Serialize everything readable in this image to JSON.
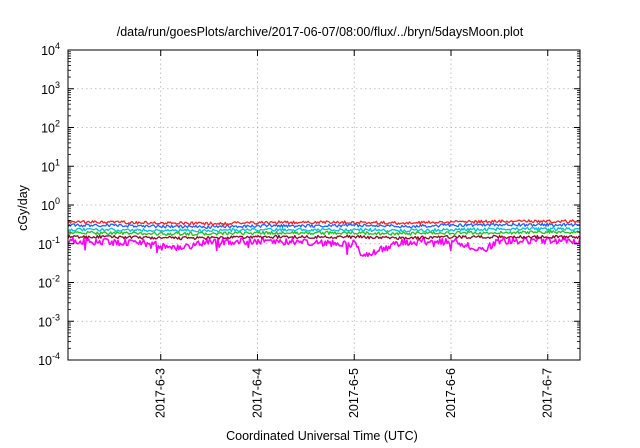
{
  "chart_data": {
    "type": "line",
    "title": "/data/run/goesPlots/archive/2017-06-07/08:00/flux/../bryn/5daysMoon.plot",
    "xlabel": "Coordinated Universal Time (UTC)",
    "ylabel": "cGy/day",
    "yscale": "log",
    "ylim": [
      0.0001,
      10000
    ],
    "y_ticks": [
      {
        "value": 0.0001,
        "base": "10",
        "exp": "-4"
      },
      {
        "value": 0.001,
        "base": "10",
        "exp": "-3"
      },
      {
        "value": 0.01,
        "base": "10",
        "exp": "-2"
      },
      {
        "value": 0.1,
        "base": "10",
        "exp": "-1"
      },
      {
        "value": 1,
        "base": "10",
        "exp": "0"
      },
      {
        "value": 10,
        "base": "10",
        "exp": "1"
      },
      {
        "value": 100,
        "base": "10",
        "exp": "2"
      },
      {
        "value": 1000,
        "base": "10",
        "exp": "3"
      },
      {
        "value": 10000,
        "base": "10",
        "exp": "4"
      }
    ],
    "xlim": [
      "2017-06-02 01:00",
      "2017-06-07 08:00"
    ],
    "x_ticks": [
      "2017-6-3",
      "2017-6-4",
      "2017-6-5",
      "2017-6-6",
      "2017-6-7"
    ],
    "x_tick_dates": [
      "2017-06-03",
      "2017-06-04",
      "2017-06-05",
      "2017-06-06",
      "2017-06-07"
    ],
    "grid": true,
    "legend": "none",
    "series_colors": [
      "#ff00ff",
      "#8b0a2a",
      "#20c020",
      "#00c0e0",
      "#2060ff",
      "#ff2020"
    ],
    "series": [
      {
        "color": "#ff00ff",
        "dates": [
          "2017-06-02 01:00",
          "2017-06-02 12:00",
          "2017-06-03 00:00",
          "2017-06-03 02:00",
          "2017-06-03 12:00",
          "2017-06-04 00:00",
          "2017-06-04 12:00",
          "2017-06-05 00:00",
          "2017-06-05 02:00",
          "2017-06-05 12:00",
          "2017-06-06 00:00",
          "2017-06-06 08:00",
          "2017-06-06 12:00",
          "2017-06-07 00:00",
          "2017-06-07 08:00"
        ],
        "values": [
          0.12,
          0.11,
          0.1,
          0.07,
          0.11,
          0.12,
          0.11,
          0.1,
          0.05,
          0.11,
          0.12,
          0.07,
          0.12,
          0.12,
          0.12
        ]
      },
      {
        "color": "#8b0a2a",
        "dates": [
          "2017-06-02 01:00",
          "2017-06-02 12:00",
          "2017-06-03 00:00",
          "2017-06-03 12:00",
          "2017-06-04 00:00",
          "2017-06-04 12:00",
          "2017-06-05 00:00",
          "2017-06-05 12:00",
          "2017-06-06 00:00",
          "2017-06-06 12:00",
          "2017-06-07 00:00",
          "2017-06-07 08:00"
        ],
        "values": [
          0.15,
          0.15,
          0.14,
          0.14,
          0.15,
          0.15,
          0.15,
          0.14,
          0.15,
          0.15,
          0.15,
          0.15
        ]
      },
      {
        "color": "#20c020",
        "dates": [
          "2017-06-02 01:00",
          "2017-06-02 12:00",
          "2017-06-03 00:00",
          "2017-06-03 12:00",
          "2017-06-04 00:00",
          "2017-06-04 12:00",
          "2017-06-05 00:00",
          "2017-06-05 12:00",
          "2017-06-06 00:00",
          "2017-06-06 12:00",
          "2017-06-07 00:00",
          "2017-06-07 08:00"
        ],
        "values": [
          0.19,
          0.19,
          0.18,
          0.18,
          0.19,
          0.19,
          0.19,
          0.18,
          0.19,
          0.19,
          0.2,
          0.2
        ]
      },
      {
        "color": "#00c0e0",
        "dates": [
          "2017-06-02 01:00",
          "2017-06-02 12:00",
          "2017-06-03 00:00",
          "2017-06-03 12:00",
          "2017-06-04 00:00",
          "2017-06-04 12:00",
          "2017-06-05 00:00",
          "2017-06-05 12:00",
          "2017-06-06 00:00",
          "2017-06-06 12:00",
          "2017-06-07 00:00",
          "2017-06-07 08:00"
        ],
        "values": [
          0.23,
          0.23,
          0.22,
          0.22,
          0.23,
          0.23,
          0.23,
          0.22,
          0.23,
          0.24,
          0.24,
          0.24
        ]
      },
      {
        "color": "#2060ff",
        "dates": [
          "2017-06-02 01:00",
          "2017-06-02 12:00",
          "2017-06-03 00:00",
          "2017-06-03 12:00",
          "2017-06-04 00:00",
          "2017-06-04 12:00",
          "2017-06-05 00:00",
          "2017-06-05 12:00",
          "2017-06-06 00:00",
          "2017-06-06 12:00",
          "2017-06-07 00:00",
          "2017-06-07 08:00"
        ],
        "values": [
          0.3,
          0.3,
          0.28,
          0.27,
          0.29,
          0.29,
          0.3,
          0.28,
          0.3,
          0.31,
          0.31,
          0.31
        ]
      },
      {
        "color": "#ff2020",
        "dates": [
          "2017-06-02 01:00",
          "2017-06-02 12:00",
          "2017-06-03 00:00",
          "2017-06-03 12:00",
          "2017-06-04 00:00",
          "2017-06-04 12:00",
          "2017-06-05 00:00",
          "2017-06-05 12:00",
          "2017-06-06 00:00",
          "2017-06-06 12:00",
          "2017-06-07 00:00",
          "2017-06-07 08:00"
        ],
        "values": [
          0.36,
          0.36,
          0.34,
          0.33,
          0.35,
          0.36,
          0.36,
          0.34,
          0.36,
          0.38,
          0.38,
          0.38
        ]
      }
    ]
  }
}
